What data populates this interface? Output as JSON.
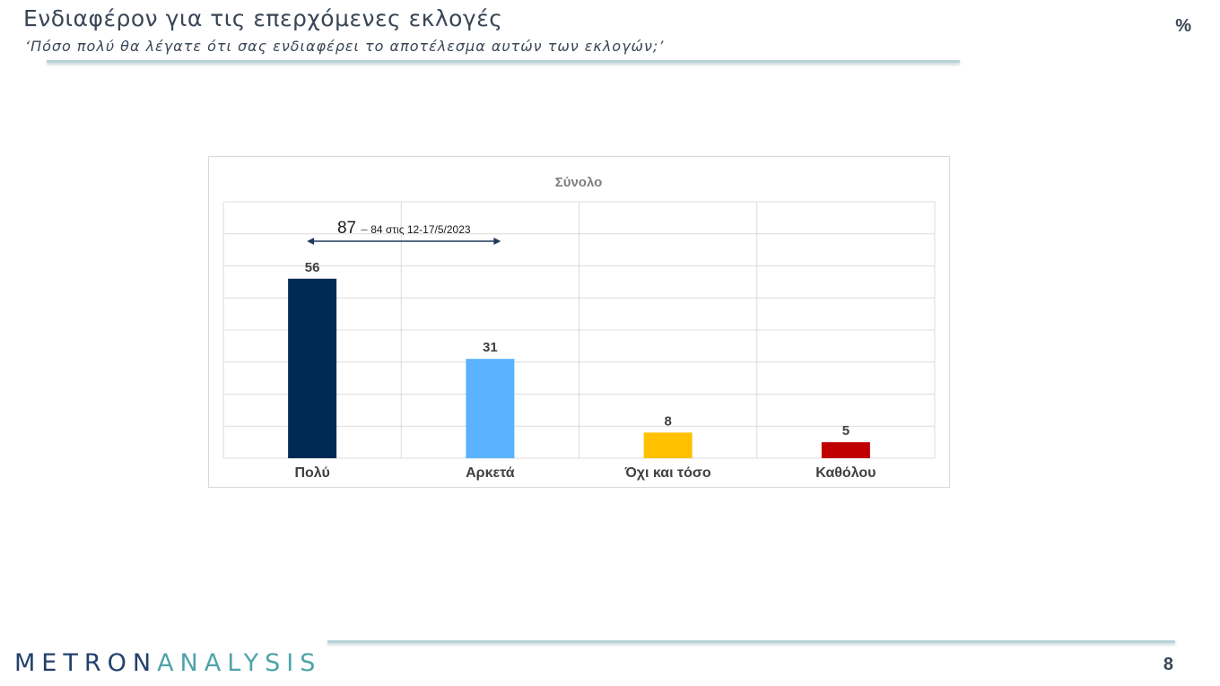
{
  "header": {
    "title": "Ενδιαφέρον για τις επερχόμενες εκλογές",
    "subtitle": "‘Πόσο πολύ θα λέγατε ότι σας ενδιαφέρει το αποτέλεσμα αυτών των εκλογών;’",
    "unit": "%"
  },
  "chart_data": {
    "type": "bar",
    "title": "Σύνολο",
    "categories": [
      "Πολύ",
      "Αρκετά",
      "Όχι και τόσο",
      "Καθόλου"
    ],
    "values": [
      56,
      31,
      8,
      5
    ],
    "colors": [
      "#002a54",
      "#5bb3ff",
      "#ffc000",
      "#c00000"
    ],
    "ylim": [
      0,
      80
    ],
    "grid": true,
    "annotation": {
      "value": "87",
      "separator": "–",
      "note": "84 στις 12-17/5/2023",
      "spans": [
        "Πολύ",
        "Αρκετά"
      ]
    }
  },
  "footer": {
    "logo_part1": "METRON",
    "logo_part2": "ANALYSIS",
    "page_number": "8"
  }
}
